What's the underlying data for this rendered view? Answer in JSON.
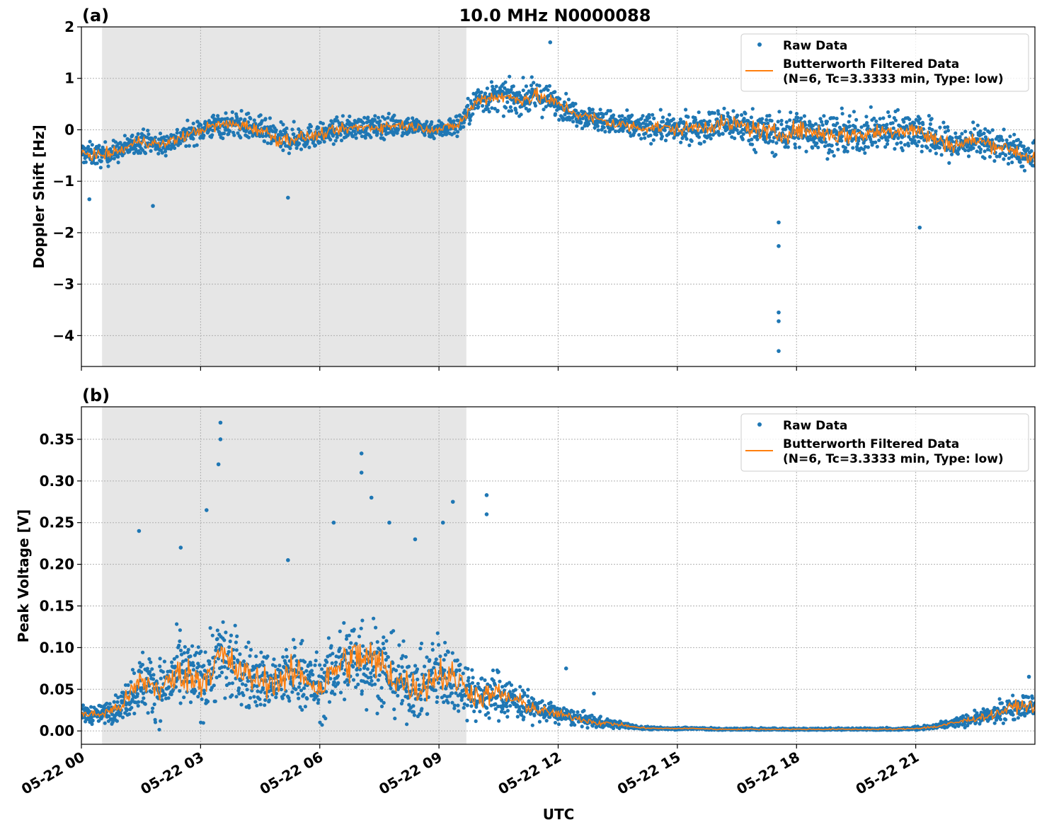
{
  "title": "10.0 MHz N0000088",
  "chart_data": [
    {
      "type": "scatter",
      "panel_label": "(a)",
      "ylabel": "Doppler Shift [Hz]",
      "xlabel": "",
      "xlim_hours_utc": [
        0,
        24
      ],
      "ylim": [
        -4.6,
        2
      ],
      "yticks": [
        2,
        1,
        0,
        -1,
        -2,
        -3,
        -4
      ],
      "ytick_labels": [
        "2",
        "1",
        "0",
        "−1",
        "−2",
        "−3",
        "−4"
      ],
      "grid": true,
      "shaded_interval_hours_utc": [
        0.52,
        9.69
      ],
      "legend": {
        "placement": "upper-right",
        "entries": [
          "Raw Data",
          "Butterworth Filtered Data\n(N=6, Tc=3.3333 min, Type: low)"
        ]
      },
      "legend_line1": "Raw Data",
      "legend_line2a": "Butterworth Filtered Data",
      "legend_line2b": "(N=6, Tc=3.3333 min, Type: low)",
      "filtered_hours": [
        0,
        0.5,
        1,
        1.5,
        2,
        2.5,
        3,
        3.5,
        4,
        4.5,
        5,
        5.5,
        6,
        6.5,
        7,
        7.5,
        8,
        8.5,
        9,
        9.5,
        10,
        10.5,
        11,
        11.5,
        12,
        12.5,
        13,
        13.5,
        14,
        14.5,
        15,
        15.5,
        16,
        16.5,
        17,
        17.5,
        18,
        18.5,
        19,
        19.5,
        20,
        20.5,
        21,
        21.5,
        22,
        22.5,
        23,
        23.5,
        24
      ],
      "filtered_values": [
        -0.45,
        -0.5,
        -0.4,
        -0.2,
        -0.3,
        -0.15,
        0.0,
        0.1,
        0.1,
        0.0,
        -0.2,
        -0.15,
        -0.1,
        0.0,
        0.05,
        0.05,
        0.1,
        0.05,
        0.0,
        0.1,
        0.6,
        0.65,
        0.6,
        0.65,
        0.5,
        0.3,
        0.2,
        0.1,
        0.05,
        0.05,
        0.0,
        0.05,
        0.1,
        0.1,
        0.0,
        -0.1,
        0.0,
        -0.05,
        -0.1,
        -0.1,
        -0.05,
        0.0,
        0.0,
        -0.2,
        -0.3,
        -0.2,
        -0.3,
        -0.4,
        -0.6
      ],
      "raw_spread": [
        0.3,
        0.3,
        0.3,
        0.3,
        0.3,
        0.3,
        0.3,
        0.35,
        0.35,
        0.35,
        0.4,
        0.35,
        0.3,
        0.3,
        0.3,
        0.3,
        0.3,
        0.25,
        0.25,
        0.3,
        0.4,
        0.4,
        0.4,
        0.45,
        0.35,
        0.3,
        0.3,
        0.35,
        0.35,
        0.35,
        0.35,
        0.4,
        0.45,
        0.45,
        0.5,
        0.55,
        0.5,
        0.5,
        0.55,
        0.5,
        0.5,
        0.5,
        0.55,
        0.5,
        0.45,
        0.4,
        0.4,
        0.4,
        0.4
      ],
      "outliers": [
        [
          17.55,
          -1.8
        ],
        [
          17.55,
          -2.26
        ],
        [
          17.55,
          -3.55
        ],
        [
          17.55,
          -3.72
        ],
        [
          17.55,
          -4.3
        ],
        [
          11.8,
          1.7
        ],
        [
          21.1,
          -1.9
        ],
        [
          1.8,
          -1.48
        ],
        [
          0.2,
          -1.35
        ],
        [
          5.2,
          -1.32
        ]
      ],
      "series_colors": {
        "raw": "#1f77b4",
        "filtered": "#ff7f0e"
      }
    },
    {
      "type": "scatter",
      "panel_label": "(b)",
      "ylabel": "Peak Voltage [V]",
      "xlabel": "UTC",
      "xlim_hours_utc": [
        0,
        24
      ],
      "ylim": [
        -0.016,
        0.389
      ],
      "yticks": [
        0,
        0.05,
        0.1,
        0.15,
        0.2,
        0.25,
        0.3,
        0.35
      ],
      "ytick_labels": [
        "0.00",
        "0.05",
        "0.10",
        "0.15",
        "0.20",
        "0.25",
        "0.30",
        "0.35"
      ],
      "xticks_hours": [
        0,
        3,
        6,
        9,
        12,
        15,
        18,
        21
      ],
      "xtick_labels": [
        "05-22 00",
        "05-22 03",
        "05-22 06",
        "05-22 09",
        "05-22 12",
        "05-22 15",
        "05-22 18",
        "05-22 21"
      ],
      "grid": true,
      "shaded_interval_hours_utc": [
        0.52,
        9.69
      ],
      "legend": {
        "placement": "upper-right",
        "entries": [
          "Raw Data",
          "Butterworth Filtered Data\n(N=6, Tc=3.3333 min, Type: low)"
        ]
      },
      "legend_line1": "Raw Data",
      "legend_line2a": "Butterworth Filtered Data",
      "legend_line2b": "(N=6, Tc=3.3333 min, Type: low)",
      "filtered_hours": [
        0,
        0.5,
        1,
        1.5,
        2,
        2.5,
        3,
        3.5,
        4,
        4.5,
        5,
        5.5,
        6,
        6.5,
        7,
        7.5,
        8,
        8.5,
        9,
        9.5,
        10,
        10.5,
        11,
        11.5,
        12,
        12.5,
        13,
        13.5,
        14,
        14.5,
        15,
        15.5,
        16,
        16.5,
        17,
        17.5,
        18,
        18.5,
        19,
        19.5,
        20,
        20.5,
        21,
        21.5,
        22,
        22.5,
        23,
        23.5,
        24
      ],
      "filtered_values": [
        0.02,
        0.02,
        0.03,
        0.06,
        0.05,
        0.07,
        0.06,
        0.09,
        0.07,
        0.06,
        0.06,
        0.07,
        0.05,
        0.08,
        0.09,
        0.08,
        0.06,
        0.05,
        0.07,
        0.06,
        0.04,
        0.045,
        0.035,
        0.025,
        0.02,
        0.015,
        0.01,
        0.008,
        0.004,
        0.003,
        0.003,
        0.003,
        0.002,
        0.002,
        0.002,
        0.002,
        0.002,
        0.002,
        0.002,
        0.002,
        0.002,
        0.002,
        0.003,
        0.005,
        0.01,
        0.015,
        0.02,
        0.03,
        0.03
      ],
      "raw_spread": [
        0.015,
        0.015,
        0.025,
        0.05,
        0.05,
        0.06,
        0.06,
        0.07,
        0.06,
        0.05,
        0.05,
        0.06,
        0.05,
        0.07,
        0.08,
        0.07,
        0.06,
        0.05,
        0.07,
        0.05,
        0.04,
        0.04,
        0.03,
        0.02,
        0.015,
        0.012,
        0.01,
        0.006,
        0.003,
        0.002,
        0.002,
        0.002,
        0.002,
        0.002,
        0.002,
        0.002,
        0.002,
        0.002,
        0.002,
        0.002,
        0.002,
        0.002,
        0.003,
        0.005,
        0.008,
        0.01,
        0.015,
        0.02,
        0.02
      ],
      "outliers": [
        [
          1.45,
          0.24
        ],
        [
          3.5,
          0.37
        ],
        [
          3.5,
          0.35
        ],
        [
          3.45,
          0.32
        ],
        [
          7.05,
          0.333
        ],
        [
          7.05,
          0.31
        ],
        [
          10.2,
          0.283
        ],
        [
          10.2,
          0.26
        ],
        [
          9.35,
          0.275
        ],
        [
          2.5,
          0.22
        ],
        [
          6.35,
          0.25
        ],
        [
          7.3,
          0.28
        ],
        [
          7.75,
          0.25
        ],
        [
          9.1,
          0.25
        ],
        [
          8.4,
          0.23
        ],
        [
          3.15,
          0.265
        ],
        [
          5.2,
          0.205
        ],
        [
          12.2,
          0.075
        ],
        [
          12.9,
          0.045
        ],
        [
          23.85,
          0.065
        ]
      ],
      "series_colors": {
        "raw": "#1f77b4",
        "filtered": "#ff7f0e"
      }
    }
  ]
}
